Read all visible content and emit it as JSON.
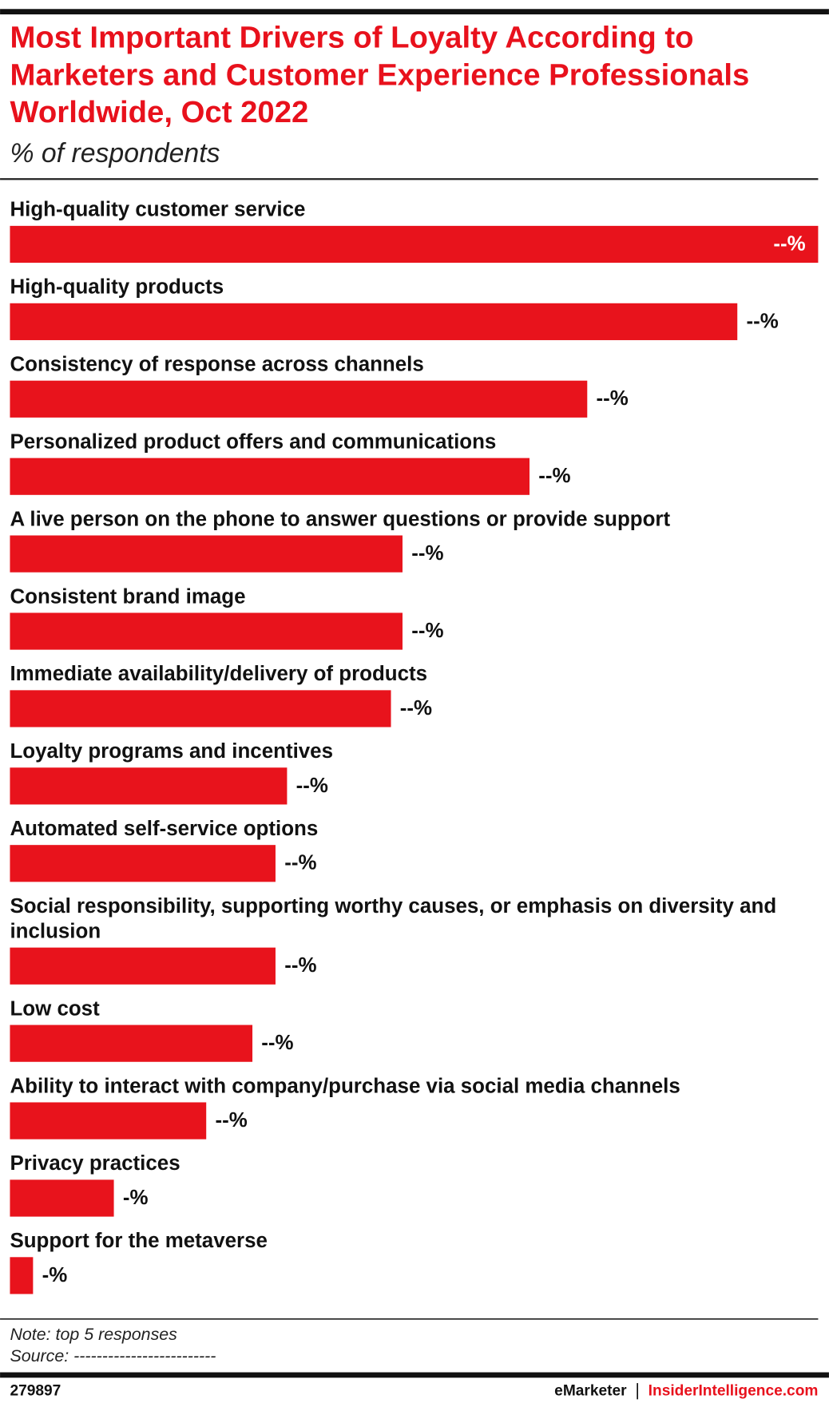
{
  "chart_data": {
    "type": "bar",
    "orientation": "horizontal",
    "title": "Most Important Drivers of Loyalty According to Marketers and Customer Experience Professionals Worldwide, Oct 2022",
    "subtitle": "% of respondents",
    "categories": [
      "High-quality customer service",
      "High-quality products",
      "Consistency of response across channels",
      "Personalized product offers and communications",
      "A live person on the phone to answer questions or provide support",
      "Consistent brand image",
      "Immediate availability/delivery of products",
      "Loyalty programs and incentives",
      "Automated self-service options",
      "Social responsibility, supporting worthy causes, or emphasis on diversity and inclusion",
      "Low cost",
      "Ability to interact with company/purchase via social media channels",
      "Privacy practices",
      "Support for the metaverse"
    ],
    "values": [
      70,
      63,
      50,
      45,
      34,
      34,
      33,
      24,
      23,
      23,
      21,
      17,
      9,
      2
    ],
    "value_labels": [
      "--%",
      "--%",
      "--%",
      "--%",
      "--%",
      "--%",
      "--%",
      "--%",
      "--%",
      "--%",
      "--%",
      "--%",
      "-%",
      "-%"
    ],
    "xlim": [
      0,
      70
    ],
    "color": "#e8131c",
    "note": "Note: top 5 responses",
    "source": "Source: -------------------------",
    "footer": {
      "id": "279897",
      "brand": "eMarketer",
      "site": "InsiderIntelligence.com"
    }
  }
}
